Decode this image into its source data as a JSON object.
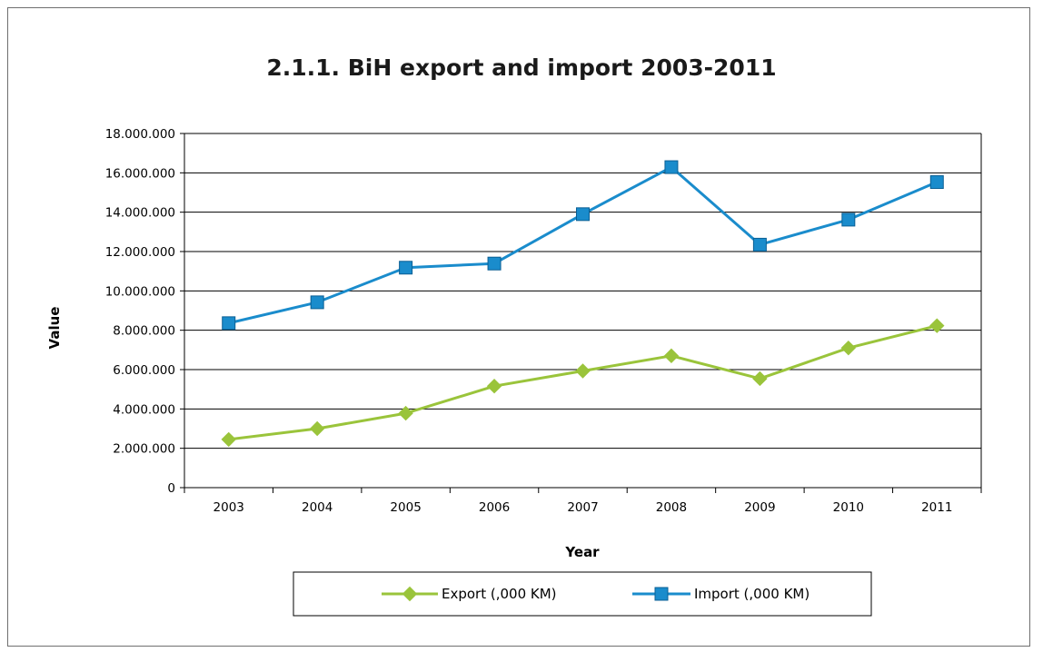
{
  "chart_data": {
    "type": "line",
    "title": "2.1.1. BiH export and import 2003-2011",
    "xlabel": "Year",
    "ylabel": "Value",
    "categories": [
      "2003",
      "2004",
      "2005",
      "2006",
      "2007",
      "2008",
      "2009",
      "2010",
      "2011"
    ],
    "y_ticks": [
      "0",
      "2.000.000",
      "4.000.000",
      "6.000.000",
      "8.000.000",
      "10.000.000",
      "12.000.000",
      "14.000.000",
      "16.000.000",
      "18.000.000"
    ],
    "ylim": [
      0,
      18000000
    ],
    "grid": true,
    "legend_position": "bottom",
    "series": [
      {
        "name": "Export (,000 KM)",
        "color": "#9ac43b",
        "marker": "diamond",
        "values": [
          2450000,
          3000000,
          3780000,
          5160000,
          5930000,
          6700000,
          5540000,
          7100000,
          8230000
        ]
      },
      {
        "name": "Import (,000 KM)",
        "color": "#1a8ccc",
        "marker": "square",
        "values": [
          8360000,
          9420000,
          11180000,
          11390000,
          13900000,
          16290000,
          12350000,
          13620000,
          15530000
        ]
      }
    ]
  }
}
